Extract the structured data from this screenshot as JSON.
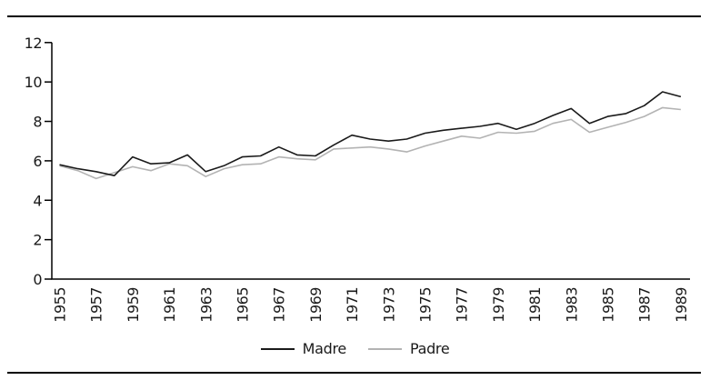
{
  "chart_data": {
    "type": "line",
    "title": "",
    "xlabel": "",
    "ylabel": "",
    "x": [
      1955,
      1956,
      1957,
      1958,
      1959,
      1960,
      1961,
      1962,
      1963,
      1964,
      1965,
      1966,
      1967,
      1968,
      1969,
      1970,
      1971,
      1972,
      1973,
      1974,
      1975,
      1976,
      1977,
      1978,
      1979,
      1980,
      1981,
      1982,
      1983,
      1984,
      1985,
      1986,
      1987,
      1988,
      1989
    ],
    "series": [
      {
        "name": "Madre",
        "color": "#1a1a1a",
        "values": [
          5.8,
          5.6,
          5.45,
          5.25,
          6.2,
          5.85,
          5.9,
          6.3,
          5.45,
          5.75,
          6.2,
          6.25,
          6.7,
          6.3,
          6.25,
          6.8,
          7.3,
          7.1,
          7.0,
          7.1,
          7.4,
          7.55,
          7.65,
          7.75,
          7.9,
          7.6,
          7.9,
          8.3,
          8.65,
          7.9,
          8.25,
          8.4,
          8.8,
          9.5,
          9.25
        ]
      },
      {
        "name": "Padre",
        "color": "#b3b3b3",
        "values": [
          5.75,
          5.5,
          5.1,
          5.4,
          5.7,
          5.5,
          5.85,
          5.75,
          5.2,
          5.6,
          5.8,
          5.85,
          6.2,
          6.1,
          6.05,
          6.6,
          6.65,
          6.7,
          6.6,
          6.45,
          6.75,
          7.0,
          7.25,
          7.15,
          7.45,
          7.4,
          7.5,
          7.9,
          8.1,
          7.45,
          7.7,
          7.95,
          8.25,
          8.7,
          8.6
        ]
      }
    ],
    "ylim": [
      0,
      12
    ],
    "yticks": [
      0,
      2,
      4,
      6,
      8,
      10,
      12
    ],
    "xtick_labels": [
      "1955",
      "1957",
      "1959",
      "1961",
      "1963",
      "1965",
      "1967",
      "1969",
      "1971",
      "1973",
      "1975",
      "1977",
      "1979",
      "1981",
      "1983",
      "1985",
      "1987",
      "1989"
    ],
    "grid": false,
    "legend_position": "bottom-center",
    "axis_color": "#000000"
  }
}
